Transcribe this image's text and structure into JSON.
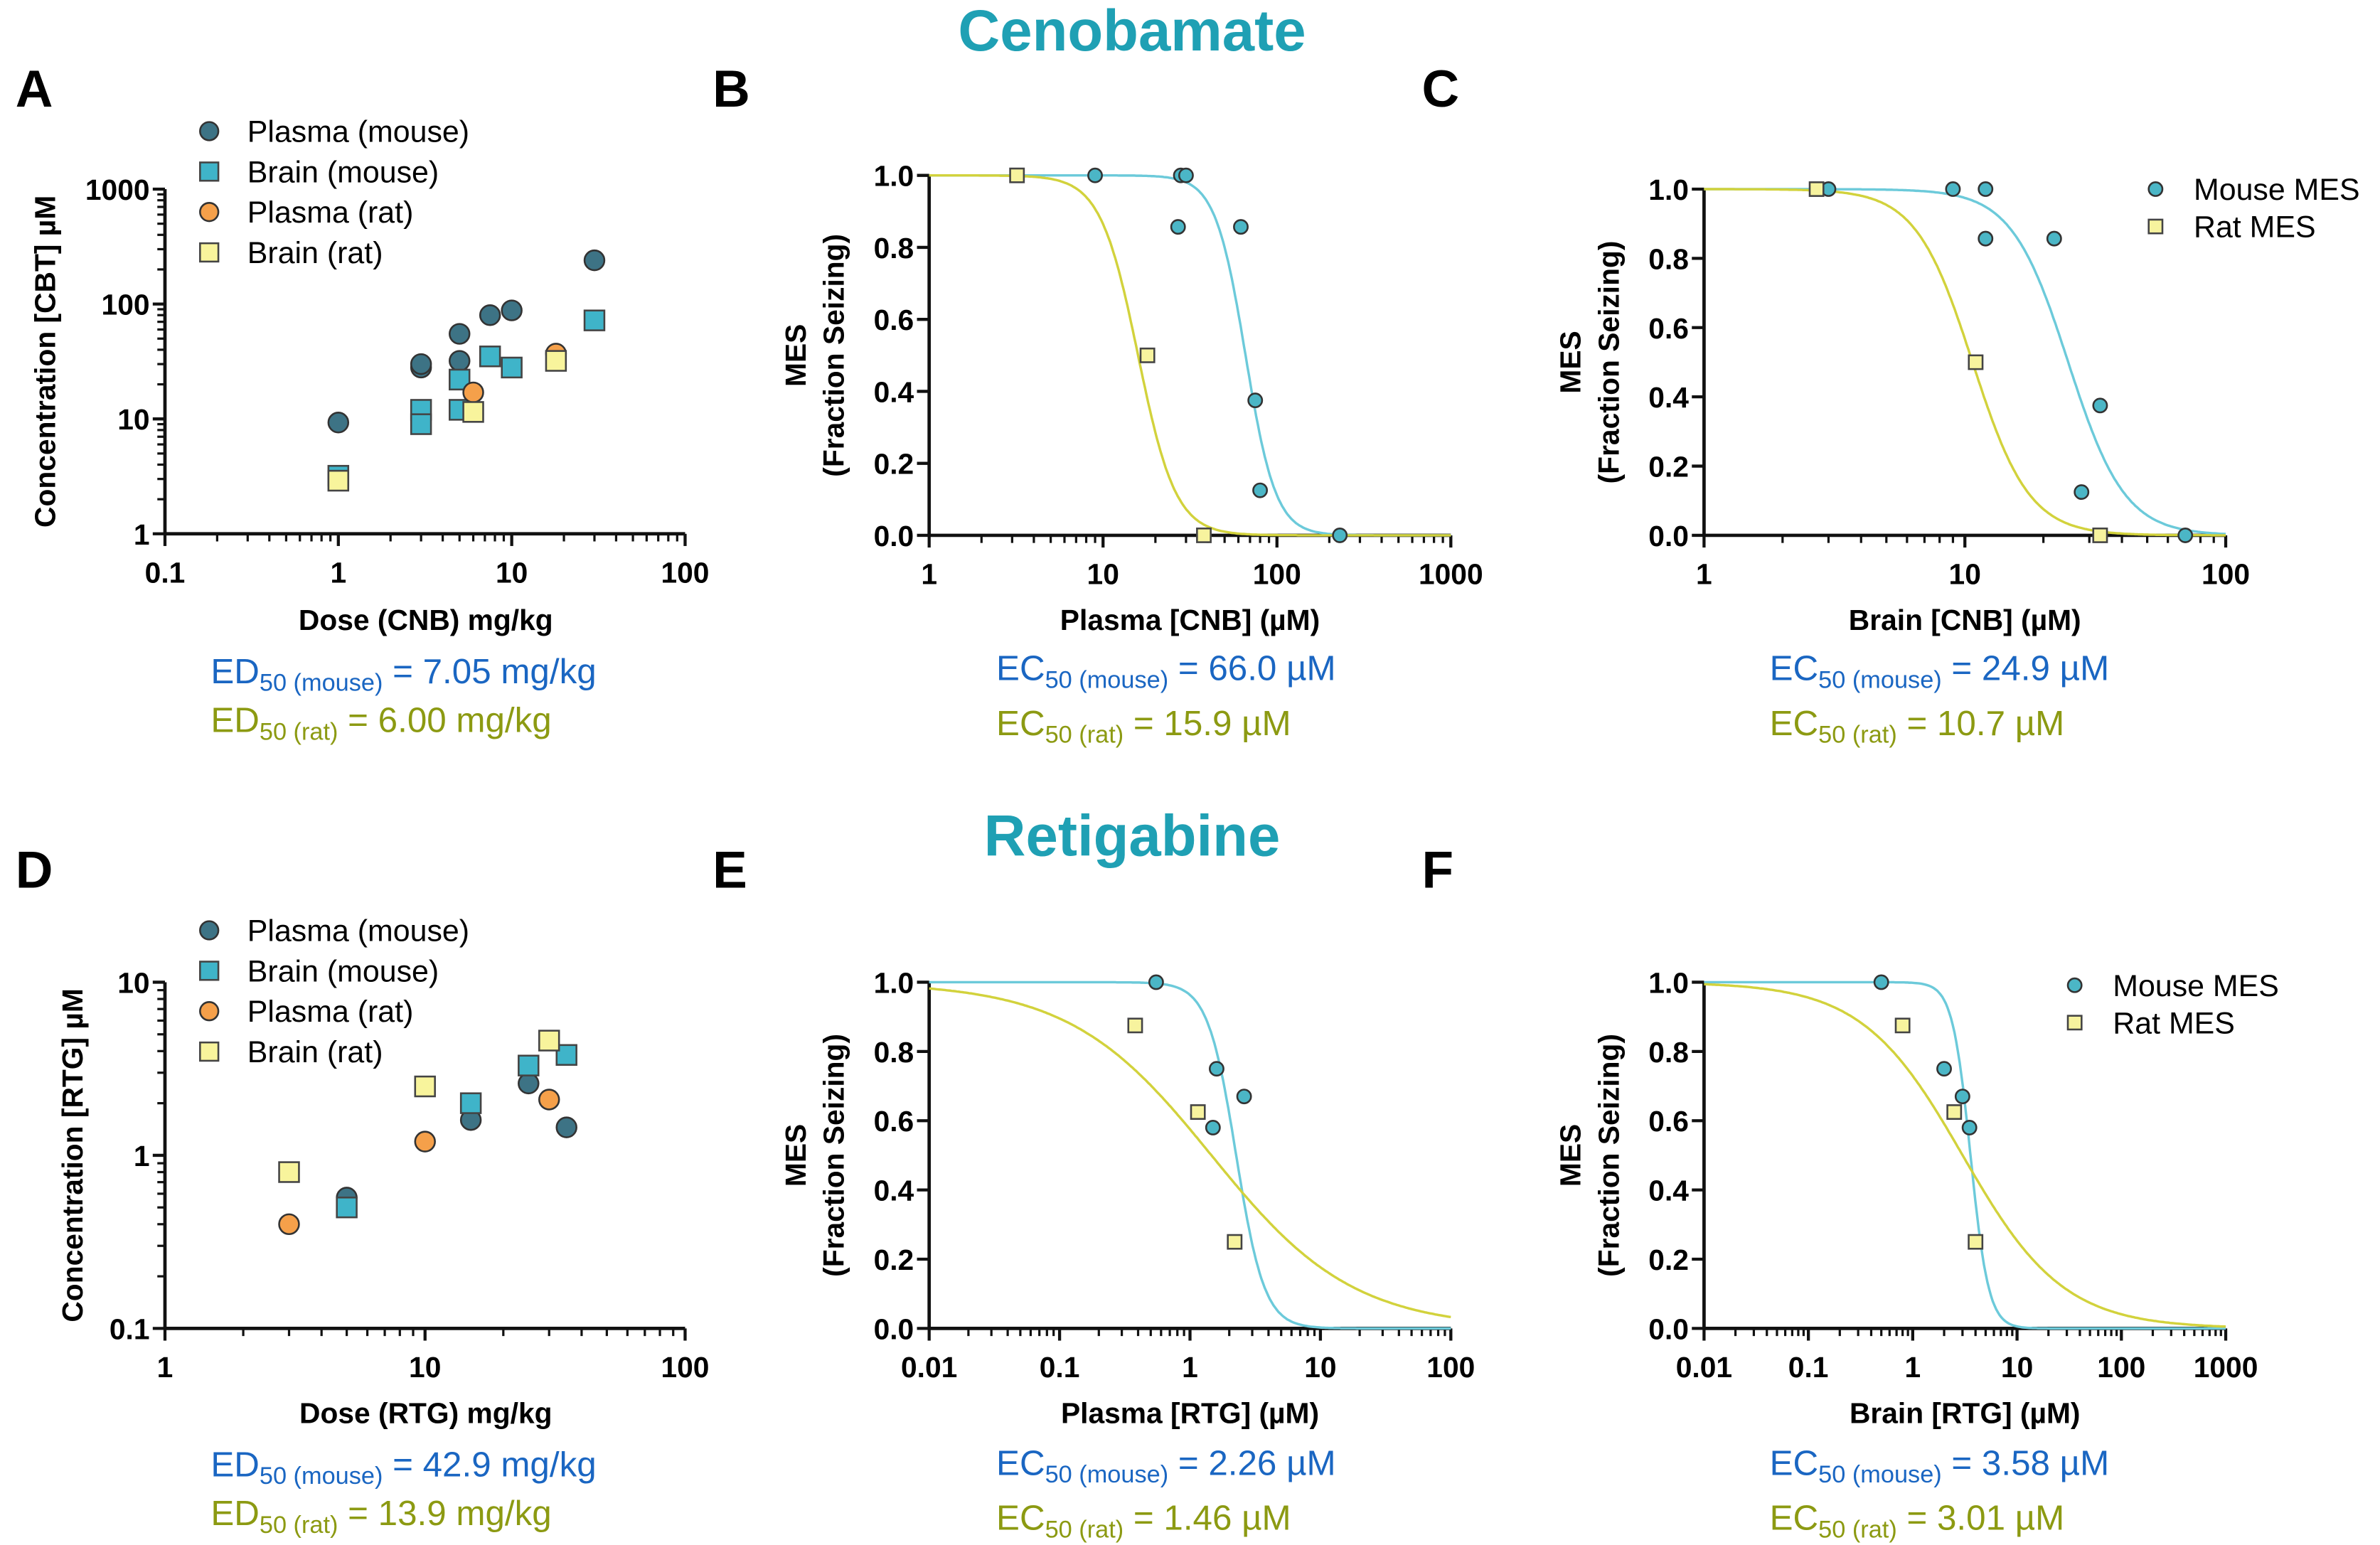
{
  "titles": {
    "top": "Cenobamate",
    "bottom": "Retigabine",
    "color": "#1fa0b4"
  },
  "colors": {
    "plasma_mouse": "#3d7385",
    "brain_mouse": "#3fb4c9",
    "plasma_rat": "#f5a04a",
    "brain_rat": "#f8f49c",
    "mouse_mes": "#4bb6c6",
    "mouse_curve": "#6ccada",
    "rat_mes": "#f7f39e",
    "rat_curve": "#d2d23c",
    "ed_mouse_text": "#1a66c2",
    "ed_rat_text": "#8c9a12"
  },
  "chart_data": [
    {
      "panel": "A",
      "type": "scatter",
      "xscale": "log",
      "yscale": "log",
      "xlim": [
        0.1,
        100
      ],
      "ylim": [
        1,
        1000
      ],
      "xticks": [
        "0.1",
        "1",
        "10",
        "100"
      ],
      "yticks": [
        "1",
        "10",
        "100",
        "1000"
      ],
      "xlabel": "Dose (CNB) mg/kg",
      "ylabel": [
        "Concentration [CBT] µM"
      ],
      "legend": "top-left",
      "series": [
        {
          "name": "Plasma (mouse)",
          "marker": "circle",
          "color_key": "plasma_mouse",
          "x": [
            1,
            3,
            3,
            5,
            5,
            7.5,
            10,
            30
          ],
          "y": [
            9.3,
            28,
            30,
            55,
            32,
            80,
            88,
            240
          ]
        },
        {
          "name": "Brain (mouse)",
          "marker": "square",
          "color_key": "brain_mouse",
          "x": [
            1,
            3,
            3,
            5,
            5,
            7.5,
            10,
            30
          ],
          "y": [
            3.2,
            12,
            9,
            22,
            12,
            35,
            28,
            72
          ]
        },
        {
          "name": "Plasma (rat)",
          "marker": "circle",
          "color_key": "plasma_rat",
          "x": [
            6,
            18
          ],
          "y": [
            17,
            37
          ]
        },
        {
          "name": "Brain (rat)",
          "marker": "square",
          "color_key": "brain_rat",
          "x": [
            1,
            6,
            18
          ],
          "y": [
            2.9,
            11.5,
            32
          ]
        }
      ],
      "results": [
        {
          "prefix": "ED",
          "sub": "50 (mouse)",
          "rest": " = 7.05 mg/kg",
          "color_key": "ed_mouse_text"
        },
        {
          "prefix": "ED",
          "sub": "50 (rat)",
          "rest": " = 6.00 mg/kg",
          "color_key": "ed_rat_text"
        }
      ]
    },
    {
      "panel": "B",
      "type": "scatter",
      "xscale": "log",
      "yscale": "linear",
      "xlim": [
        1,
        1000
      ],
      "ylim": [
        0,
        1
      ],
      "xticks": [
        "1",
        "10",
        "100",
        "1000"
      ],
      "yticks": [
        "0.0",
        "0.2",
        "0.4",
        "0.6",
        "0.8",
        "1.0"
      ],
      "xlabel": "Plasma [CNB] (µM)",
      "ylabel": [
        "MES",
        "(Fraction Seizing)"
      ],
      "series": [
        {
          "name": "Mouse MES",
          "marker": "circle",
          "color_key": "mouse_mes",
          "curve_key": "mouse_curve",
          "ec50": 66.0,
          "x": [
            9,
            28,
            30,
            27,
            62,
            75,
            80,
            230
          ],
          "y": [
            1,
            1,
            1,
            0.857,
            0.857,
            0.375,
            0.125,
            0
          ]
        },
        {
          "name": "Rat MES",
          "marker": "square",
          "color_key": "rat_mes",
          "curve_key": "rat_curve",
          "ec50": 15.9,
          "x": [
            3.2,
            18,
            38
          ],
          "y": [
            1,
            0.5,
            0
          ]
        }
      ],
      "results": [
        {
          "prefix": "EC",
          "sub": "50 (mouse)",
          "rest": " = 66.0 µM",
          "color_key": "ed_mouse_text"
        },
        {
          "prefix": "EC",
          "sub": "50 (rat)",
          "rest": " = 15.9 µM",
          "color_key": "ed_rat_text"
        }
      ]
    },
    {
      "panel": "C",
      "type": "scatter",
      "xscale": "log",
      "yscale": "linear",
      "xlim": [
        1,
        100
      ],
      "ylim": [
        0,
        1
      ],
      "xticks": [
        "1",
        "10",
        "100"
      ],
      "yticks": [
        "0.0",
        "0.2",
        "0.4",
        "0.6",
        "0.8",
        "1.0"
      ],
      "xlabel": "Brain [CNB] (µM)",
      "ylabel": [
        "MES",
        "(Fraction Seizing)"
      ],
      "legend": "top-right",
      "series": [
        {
          "name": "Mouse MES",
          "marker": "circle",
          "color_key": "mouse_mes",
          "curve_key": "mouse_curve",
          "ec50": 24.9,
          "x": [
            3,
            9,
            12,
            12,
            22,
            33,
            28,
            70
          ],
          "y": [
            1,
            1,
            1,
            0.857,
            0.857,
            0.375,
            0.125,
            0
          ]
        },
        {
          "name": "Rat MES",
          "marker": "square",
          "color_key": "rat_mes",
          "curve_key": "rat_curve",
          "ec50": 10.7,
          "x": [
            2.7,
            11,
            33
          ],
          "y": [
            1,
            0.5,
            0
          ]
        }
      ],
      "results": [
        {
          "prefix": "EC",
          "sub": "50 (mouse)",
          "rest": " = 24.9 µM",
          "color_key": "ed_mouse_text"
        },
        {
          "prefix": "EC",
          "sub": "50 (rat)",
          "rest": " = 10.7 µM",
          "color_key": "ed_rat_text"
        }
      ]
    },
    {
      "panel": "D",
      "type": "scatter",
      "xscale": "log",
      "yscale": "log",
      "xlim": [
        1,
        100
      ],
      "ylim": [
        0.1,
        10
      ],
      "xticks": [
        "1",
        "10",
        "100"
      ],
      "yticks": [
        "0.1",
        "1",
        "10"
      ],
      "xlabel": "Dose (RTG) mg/kg",
      "ylabel": [
        "Concentration [RTG] µM"
      ],
      "legend": "top-left",
      "series": [
        {
          "name": "Plasma (mouse)",
          "marker": "circle",
          "color_key": "plasma_mouse",
          "x": [
            5,
            15,
            25,
            35
          ],
          "y": [
            0.57,
            1.6,
            2.6,
            1.45
          ]
        },
        {
          "name": "Brain (mouse)",
          "marker": "square",
          "color_key": "brain_mouse",
          "x": [
            5,
            15,
            25,
            35
          ],
          "y": [
            0.5,
            2.0,
            3.3,
            3.8
          ]
        },
        {
          "name": "Plasma (rat)",
          "marker": "circle",
          "color_key": "plasma_rat",
          "x": [
            3,
            10,
            30
          ],
          "y": [
            0.4,
            1.2,
            2.1
          ]
        },
        {
          "name": "Brain (rat)",
          "marker": "square",
          "color_key": "brain_rat",
          "x": [
            3,
            10,
            30
          ],
          "y": [
            0.8,
            2.5,
            4.6
          ]
        }
      ],
      "results": [
        {
          "prefix": "ED",
          "sub": "50 (mouse)",
          "rest": " = 42.9 mg/kg",
          "color_key": "ed_mouse_text"
        },
        {
          "prefix": "ED",
          "sub": "50 (rat)",
          "rest": " = 13.9 mg/kg",
          "color_key": "ed_rat_text"
        }
      ]
    },
    {
      "panel": "E",
      "type": "scatter",
      "xscale": "log",
      "yscale": "linear",
      "xlim": [
        0.01,
        100
      ],
      "ylim": [
        0,
        1
      ],
      "xticks": [
        "0.01",
        "0.1",
        "1",
        "10",
        "100"
      ],
      "yticks": [
        "0.0",
        "0.2",
        "0.4",
        "0.6",
        "0.8",
        "1.0"
      ],
      "xlabel": "Plasma [RTG] (µM)",
      "ylabel": [
        "MES",
        "(Fraction Seizing)"
      ],
      "series": [
        {
          "name": "Mouse MES",
          "marker": "circle",
          "color_key": "mouse_mes",
          "curve_key": "mouse_curve",
          "ec50": 2.26,
          "x": [
            0.55,
            1.6,
            1.5,
            2.6
          ],
          "y": [
            1,
            0.75,
            0.58,
            0.67
          ]
        },
        {
          "name": "Rat MES",
          "marker": "square",
          "color_key": "rat_mes",
          "curve_key": "rat_curve",
          "ec50": 1.46,
          "x": [
            0.38,
            1.15,
            2.2
          ],
          "y": [
            0.875,
            0.625,
            0.25
          ]
        }
      ],
      "results": [
        {
          "prefix": "EC",
          "sub": "50 (mouse)",
          "rest": " = 2.26 µM",
          "color_key": "ed_mouse_text"
        },
        {
          "prefix": "EC",
          "sub": "50 (rat)",
          "rest": " = 1.46 µM",
          "color_key": "ed_rat_text"
        }
      ]
    },
    {
      "panel": "F",
      "type": "scatter",
      "xscale": "log",
      "yscale": "linear",
      "xlim": [
        0.01,
        1000
      ],
      "ylim": [
        0,
        1
      ],
      "xticks": [
        "0.01",
        "0.1",
        "1",
        "10",
        "100",
        "1000"
      ],
      "yticks": [
        "0.0",
        "0.2",
        "0.4",
        "0.6",
        "0.8",
        "1.0"
      ],
      "xlabel": "Brain [RTG] (µM)",
      "ylabel": [
        "MES",
        "(Fraction Seizing)"
      ],
      "legend": "top-right",
      "series": [
        {
          "name": "Mouse MES",
          "marker": "circle",
          "color_key": "mouse_mes",
          "curve_key": "mouse_curve",
          "ec50": 3.58,
          "x": [
            0.5,
            2,
            3,
            3.5
          ],
          "y": [
            1,
            0.75,
            0.67,
            0.58
          ]
        },
        {
          "name": "Rat MES",
          "marker": "square",
          "color_key": "rat_mes",
          "curve_key": "rat_curve",
          "ec50": 3.01,
          "x": [
            0.8,
            2.5,
            4
          ],
          "y": [
            0.875,
            0.625,
            0.25
          ]
        }
      ],
      "results": [
        {
          "prefix": "EC",
          "sub": "50 (mouse)",
          "rest": " = 3.58 µM",
          "color_key": "ed_mouse_text"
        },
        {
          "prefix": "EC",
          "sub": "50 (rat)",
          "rest": " = 3.01 µM",
          "color_key": "ed_rat_text"
        }
      ]
    }
  ]
}
